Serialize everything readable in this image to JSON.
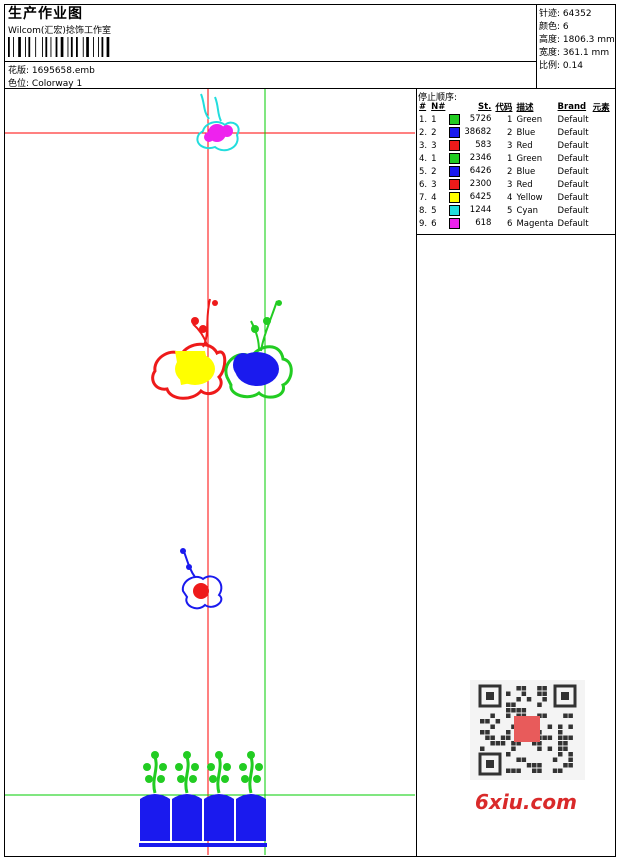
{
  "header": {
    "title": "生产作业图",
    "company": "Wilcom(汇宏)捻饰工作室",
    "design_label": "花版:",
    "design_file": "1695658.emb",
    "colorway_label": "色位:",
    "colorway": "Colorway 1"
  },
  "stats": [
    {
      "label": "针迹:",
      "value": "64352"
    },
    {
      "label": "颜色:",
      "value": "6"
    },
    {
      "label": "高度:",
      "value": "1806.3 mm"
    },
    {
      "label": "宽度:",
      "value": "361.1 mm"
    },
    {
      "label": "比例:",
      "value": "0.14"
    }
  ],
  "stop_sequence": {
    "title": "停止顺序:",
    "columns": [
      "#",
      "N#",
      "St.",
      "代码",
      "描述",
      "Brand",
      "元素"
    ],
    "rows": [
      {
        "idx": "1.",
        "n": "1",
        "color": "#22cc22",
        "st": "5726",
        "code": "1",
        "desc": "Green",
        "brand": "Default"
      },
      {
        "idx": "2.",
        "n": "2",
        "color": "#1a1aee",
        "st": "38682",
        "code": "2",
        "desc": "Blue",
        "brand": "Default"
      },
      {
        "idx": "3.",
        "n": "3",
        "color": "#ee1a1a",
        "st": "583",
        "code": "3",
        "desc": "Red",
        "brand": "Default"
      },
      {
        "idx": "4.",
        "n": "1",
        "color": "#22cc22",
        "st": "2346",
        "code": "1",
        "desc": "Green",
        "brand": "Default"
      },
      {
        "idx": "5.",
        "n": "2",
        "color": "#1a1aee",
        "st": "6426",
        "code": "2",
        "desc": "Blue",
        "brand": "Default"
      },
      {
        "idx": "6.",
        "n": "3",
        "color": "#ee1a1a",
        "st": "2300",
        "code": "3",
        "desc": "Red",
        "brand": "Default"
      },
      {
        "idx": "7.",
        "n": "4",
        "color": "#ffff00",
        "st": "6425",
        "code": "4",
        "desc": "Yellow",
        "brand": "Default"
      },
      {
        "idx": "8.",
        "n": "5",
        "color": "#22dddd",
        "st": "1244",
        "code": "5",
        "desc": "Cyan",
        "brand": "Default"
      },
      {
        "idx": "9.",
        "n": "6",
        "color": "#ee22ee",
        "st": "618",
        "code": "6",
        "desc": "Magenta",
        "brand": "Default"
      }
    ]
  },
  "watermark": {
    "site": "6xiu.com"
  },
  "colors": {
    "guide_red": "#ff0000",
    "guide_green": "#00cc00"
  }
}
